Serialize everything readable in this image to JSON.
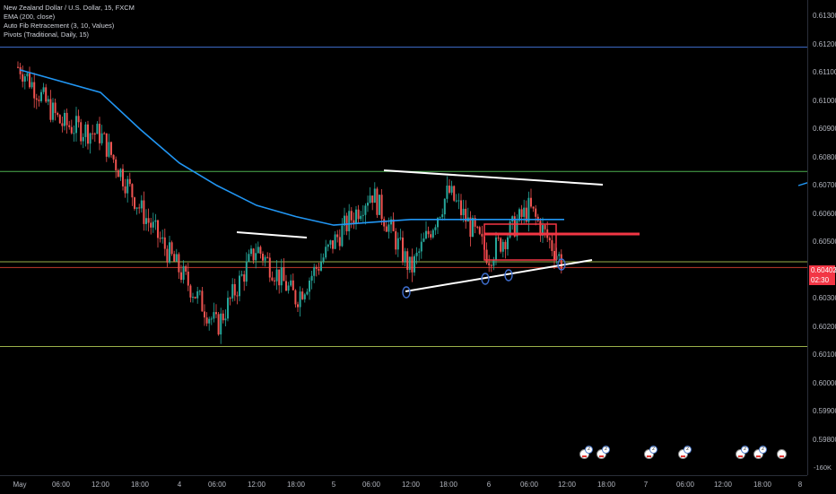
{
  "legend": {
    "symbol": "New Zealand Dollar / U.S. Dollar, 15, FXCM",
    "ema": "EMA (200, close)",
    "fib": "Auto Fib Retracement (3, 10, Values)",
    "pivots": "Pivots (Traditional, Daily, 15)"
  },
  "price_axis": {
    "ticks": [
      "0.61300",
      "0.61200",
      "0.61100",
      "0.61000",
      "0.60900",
      "0.60800",
      "0.60700",
      "0.60600",
      "0.60500",
      "0.60400",
      "0.60300",
      "0.60200",
      "0.60100",
      "0.60000",
      "0.59900",
      "0.59800"
    ],
    "current_price": "0.60402",
    "countdown": "02:30",
    "volume_label": "-160K"
  },
  "time_axis": {
    "ticks": [
      "May",
      "06:00",
      "12:00",
      "18:00",
      "4",
      "06:00",
      "12:00",
      "18:00",
      "5",
      "06:00",
      "12:00",
      "18:00",
      "6",
      "06:00",
      "12:00",
      "18:00",
      "7",
      "06:00",
      "12:00",
      "18:00",
      "8"
    ]
  },
  "colors": {
    "background": "#000000",
    "ema": "#2196f3",
    "up_candle": "#26a69a",
    "down_candle": "#ef5350",
    "trendline": "#ffffff",
    "resistance": "#f23645",
    "pivot_blue": "#3f6fd0",
    "pivot_green": "#4caf50",
    "pivot_olive": "#9ab04a",
    "pivot_red": "#c0392b"
  },
  "chart_data": {
    "type": "candlestick",
    "ylim": [
      0.5975,
      0.6135
    ],
    "y_ticks": [
      0.613,
      0.612,
      0.611,
      0.61,
      0.609,
      0.608,
      0.607,
      0.606,
      0.605,
      0.604,
      0.603,
      0.602,
      0.601,
      0.6,
      0.599,
      0.598
    ],
    "x": [
      "May",
      "06:00",
      "12:00",
      "18:00",
      "4",
      "06:00",
      "12:00",
      "18:00",
      "5",
      "06:00",
      "12:00",
      "18:00",
      "6",
      "06:00",
      "12:00",
      "18:00",
      "7",
      "06:00",
      "12:00",
      "18:00",
      "8"
    ],
    "close_path": [
      {
        "x": "May",
        "y": 0.6112
      },
      {
        "x": "May 06:00",
        "y": 0.6092
      },
      {
        "x": "May 12:00",
        "y": 0.6088
      },
      {
        "x": "May 18:00",
        "y": 0.6062
      },
      {
        "x": "4",
        "y": 0.604
      },
      {
        "x": "4 06:00",
        "y": 0.602
      },
      {
        "x": "4 12:00",
        "y": 0.6048
      },
      {
        "x": "4 18:00",
        "y": 0.603
      },
      {
        "x": "5",
        "y": 0.605
      },
      {
        "x": "5 06:00",
        "y": 0.6068
      },
      {
        "x": "5 12:00",
        "y": 0.604
      },
      {
        "x": "5 18:00",
        "y": 0.6068
      },
      {
        "x": "6",
        "y": 0.6045
      },
      {
        "x": "6 06:00",
        "y": 0.6062
      },
      {
        "x": "6 12:00",
        "y": 0.604
      }
    ],
    "ema_200": [
      {
        "x": "May",
        "y": 0.6111
      },
      {
        "x": "May 12:00",
        "y": 0.6103
      },
      {
        "x": "May 18:00",
        "y": 0.609
      },
      {
        "x": "4",
        "y": 0.6078
      },
      {
        "x": "4 06:00",
        "y": 0.607
      },
      {
        "x": "4 12:00",
        "y": 0.6063
      },
      {
        "x": "4 18:00",
        "y": 0.6059
      },
      {
        "x": "5",
        "y": 0.6056
      },
      {
        "x": "5 06:00",
        "y": 0.6057
      },
      {
        "x": "5 12:00",
        "y": 0.6058
      },
      {
        "x": "6",
        "y": 0.6058
      },
      {
        "x": "6 06:00",
        "y": 0.6058
      }
    ],
    "pivot_levels": [
      {
        "name": "blue",
        "value": 0.6119
      },
      {
        "name": "green",
        "value": 0.6075
      },
      {
        "name": "olive_upper",
        "value": 0.6043
      },
      {
        "name": "red",
        "value": 0.6041
      },
      {
        "name": "olive_lower",
        "value": 0.6013
      }
    ],
    "trendlines": [
      {
        "from": {
          "x": "5 06:00",
          "y": 0.6077
        },
        "to": {
          "x": "6 18:00",
          "y": 0.6071
        }
      },
      {
        "from": {
          "x": "4 12:00",
          "y": 0.6054
        },
        "to": {
          "x": "4 18:00",
          "y": 0.6052
        }
      },
      {
        "from": {
          "x": "5 12:00",
          "y": 0.6033
        },
        "to": {
          "x": "6 18:00",
          "y": 0.6043
        }
      }
    ],
    "resistance_zone": {
      "from": "6",
      "to": "6 18:00",
      "y": 0.6053
    }
  },
  "events": [
    {
      "count": "2"
    },
    {
      "count": "2"
    },
    {
      "count": "2"
    },
    {
      "count": "2"
    },
    {
      "count": "2"
    },
    {
      "count": "2"
    }
  ]
}
